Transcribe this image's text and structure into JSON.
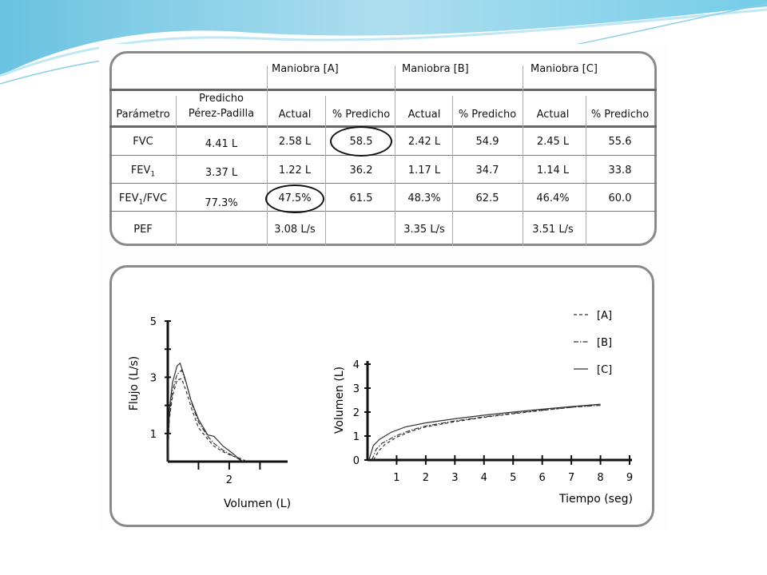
{
  "table": {
    "group_headers": [
      "Maniobra [A]",
      "Maniobra [B]",
      "Maniobra [C]"
    ],
    "col_headers": [
      "Parámetro",
      "Predicho",
      "Pérez-Padilla",
      "Actual",
      "% Predicho",
      "Actual",
      "% Predicho",
      "Actual",
      "% Predicho"
    ],
    "rows": [
      {
        "param": "FVC",
        "param_sub": "",
        "param_tail": "",
        "pred": "4.41 L",
        "a_actual": "2.58 L",
        "a_pct": "58.5",
        "b_actual": "2.42 L",
        "b_pct": "54.9",
        "c_actual": "2.45 L",
        "c_pct": "55.6"
      },
      {
        "param": "FEV",
        "param_sub": "1",
        "param_tail": "",
        "pred": "3.37 L",
        "a_actual": "1.22 L",
        "a_pct": "36.2",
        "b_actual": "1.17 L",
        "b_pct": "34.7",
        "c_actual": "1.14 L",
        "c_pct": "33.8"
      },
      {
        "param": "FEV",
        "param_sub": "1",
        "param_tail": "/FVC",
        "pred": "77.3%",
        "a_actual": "47.5%",
        "a_pct": "61.5",
        "b_actual": "48.3%",
        "b_pct": "62.5",
        "c_actual": "46.4%",
        "c_pct": "60.0"
      },
      {
        "param": "PEF",
        "param_sub": "",
        "param_tail": "",
        "pred": "",
        "a_actual": "3.08 L/s",
        "a_pct": "",
        "b_actual": "3.35 L/s",
        "b_pct": "",
        "c_actual": "3.51 L/s",
        "c_pct": ""
      }
    ]
  },
  "chart_data": [
    {
      "type": "line",
      "xlabel": "Volumen (L)",
      "ylabel": "Flujo (L/s)",
      "xlim": [
        0,
        3.9
      ],
      "ylim": [
        0,
        5
      ],
      "xticks": [
        1,
        2,
        3
      ],
      "xtick_labels": [
        "",
        "2",
        ""
      ],
      "yticks": [
        1,
        2,
        3,
        4,
        5
      ],
      "ytick_labels": [
        "1",
        "",
        "3",
        "",
        "5"
      ],
      "series": [
        {
          "name": "[A]",
          "dash": "dash",
          "x": [
            0,
            0.05,
            0.15,
            0.3,
            0.45,
            0.6,
            0.8,
            1.0,
            1.3,
            1.5,
            1.8,
            2.1,
            2.4,
            2.58
          ],
          "y": [
            0,
            1.5,
            2.3,
            2.9,
            2.95,
            2.5,
            1.8,
            1.2,
            0.8,
            0.55,
            0.35,
            0.2,
            0.1,
            0
          ]
        },
        {
          "name": "[B]",
          "dash": "dashdot",
          "x": [
            0,
            0.05,
            0.15,
            0.3,
            0.45,
            0.6,
            0.8,
            1.0,
            1.3,
            1.5,
            1.8,
            2.1,
            2.3,
            2.42
          ],
          "y": [
            0,
            1.6,
            2.5,
            3.1,
            3.25,
            2.8,
            2.0,
            1.4,
            0.9,
            0.65,
            0.4,
            0.22,
            0.1,
            0
          ]
        },
        {
          "name": "[C]",
          "dash": "solid",
          "x": [
            0,
            0.05,
            0.15,
            0.3,
            0.4,
            0.55,
            0.75,
            1.0,
            1.3,
            1.5,
            1.8,
            2.1,
            2.3,
            2.45
          ],
          "y": [
            0,
            1.8,
            2.8,
            3.4,
            3.5,
            3.0,
            2.2,
            1.5,
            0.95,
            0.9,
            0.55,
            0.3,
            0.12,
            0
          ]
        }
      ]
    },
    {
      "type": "line",
      "xlabel": "Tiempo (seg)",
      "ylabel": "Volumen (L)",
      "xlim": [
        0,
        9
      ],
      "ylim": [
        0,
        4
      ],
      "xticks": [
        1,
        2,
        3,
        4,
        5,
        6,
        7,
        8,
        9
      ],
      "yticks": [
        0,
        1,
        2,
        3,
        4
      ],
      "legend_position": "top-right",
      "series": [
        {
          "name": "[A]",
          "dash": "dash",
          "x": [
            0.2,
            0.4,
            0.6,
            1,
            1.5,
            2,
            3,
            4,
            5,
            6,
            7,
            8
          ],
          "y": [
            0,
            0.4,
            0.65,
            0.95,
            1.2,
            1.38,
            1.6,
            1.78,
            1.93,
            2.07,
            2.2,
            2.32
          ]
        },
        {
          "name": "[B]",
          "dash": "dashdot",
          "x": [
            0.15,
            0.3,
            0.5,
            1,
            1.5,
            2,
            3,
            4,
            5,
            6,
            7,
            8
          ],
          "y": [
            0,
            0.45,
            0.7,
            1.02,
            1.25,
            1.42,
            1.63,
            1.8,
            1.95,
            2.08,
            2.2,
            2.28
          ]
        },
        {
          "name": "[C]",
          "dash": "solid",
          "x": [
            0.05,
            0.2,
            0.4,
            0.8,
            1.3,
            2,
            3,
            4,
            5,
            6,
            7,
            8
          ],
          "y": [
            0,
            0.6,
            0.85,
            1.15,
            1.38,
            1.55,
            1.72,
            1.87,
            2.0,
            2.12,
            2.23,
            2.33
          ]
        }
      ]
    }
  ]
}
